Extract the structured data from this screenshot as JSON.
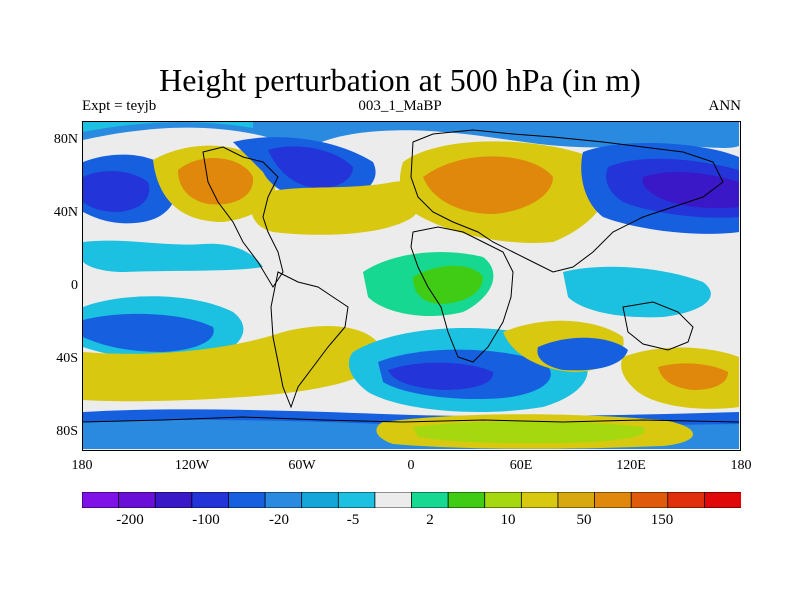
{
  "title": "Height perturbation at 500 hPa (in m)",
  "subtitle_left": "Expt = teyjb",
  "subtitle_center": "003_1_MaBP",
  "subtitle_right": "ANN",
  "map": {
    "projection": "cylindrical-equidistant",
    "lon_range": [
      -180,
      180
    ],
    "lat_range": [
      -90,
      90
    ],
    "y_tick_labels": [
      "80N",
      "40N",
      "0",
      "40S",
      "80S"
    ],
    "x_tick_labels": [
      "180",
      "120W",
      "60W",
      "0",
      "60E",
      "120E",
      "180"
    ],
    "y_tick_values": [
      80,
      40,
      0,
      -40,
      -80
    ],
    "x_tick_values": [
      -180,
      -120,
      -60,
      0,
      60,
      120,
      180
    ]
  },
  "colorbar": {
    "colors": [
      "#7f12e6",
      "#6a0fd8",
      "#3a18c8",
      "#2335d8",
      "#1660e0",
      "#2a8ae0",
      "#14a6d8",
      "#1cc0e0",
      "#ececec",
      "#16d890",
      "#40cc14",
      "#a6d810",
      "#d8c810",
      "#d8a810",
      "#e0880c",
      "#e05a0c",
      "#e0300c",
      "#e00808"
    ],
    "labels": [
      "-200",
      "-100",
      "-20",
      "-5",
      "2",
      "10",
      "50",
      "150"
    ]
  }
}
